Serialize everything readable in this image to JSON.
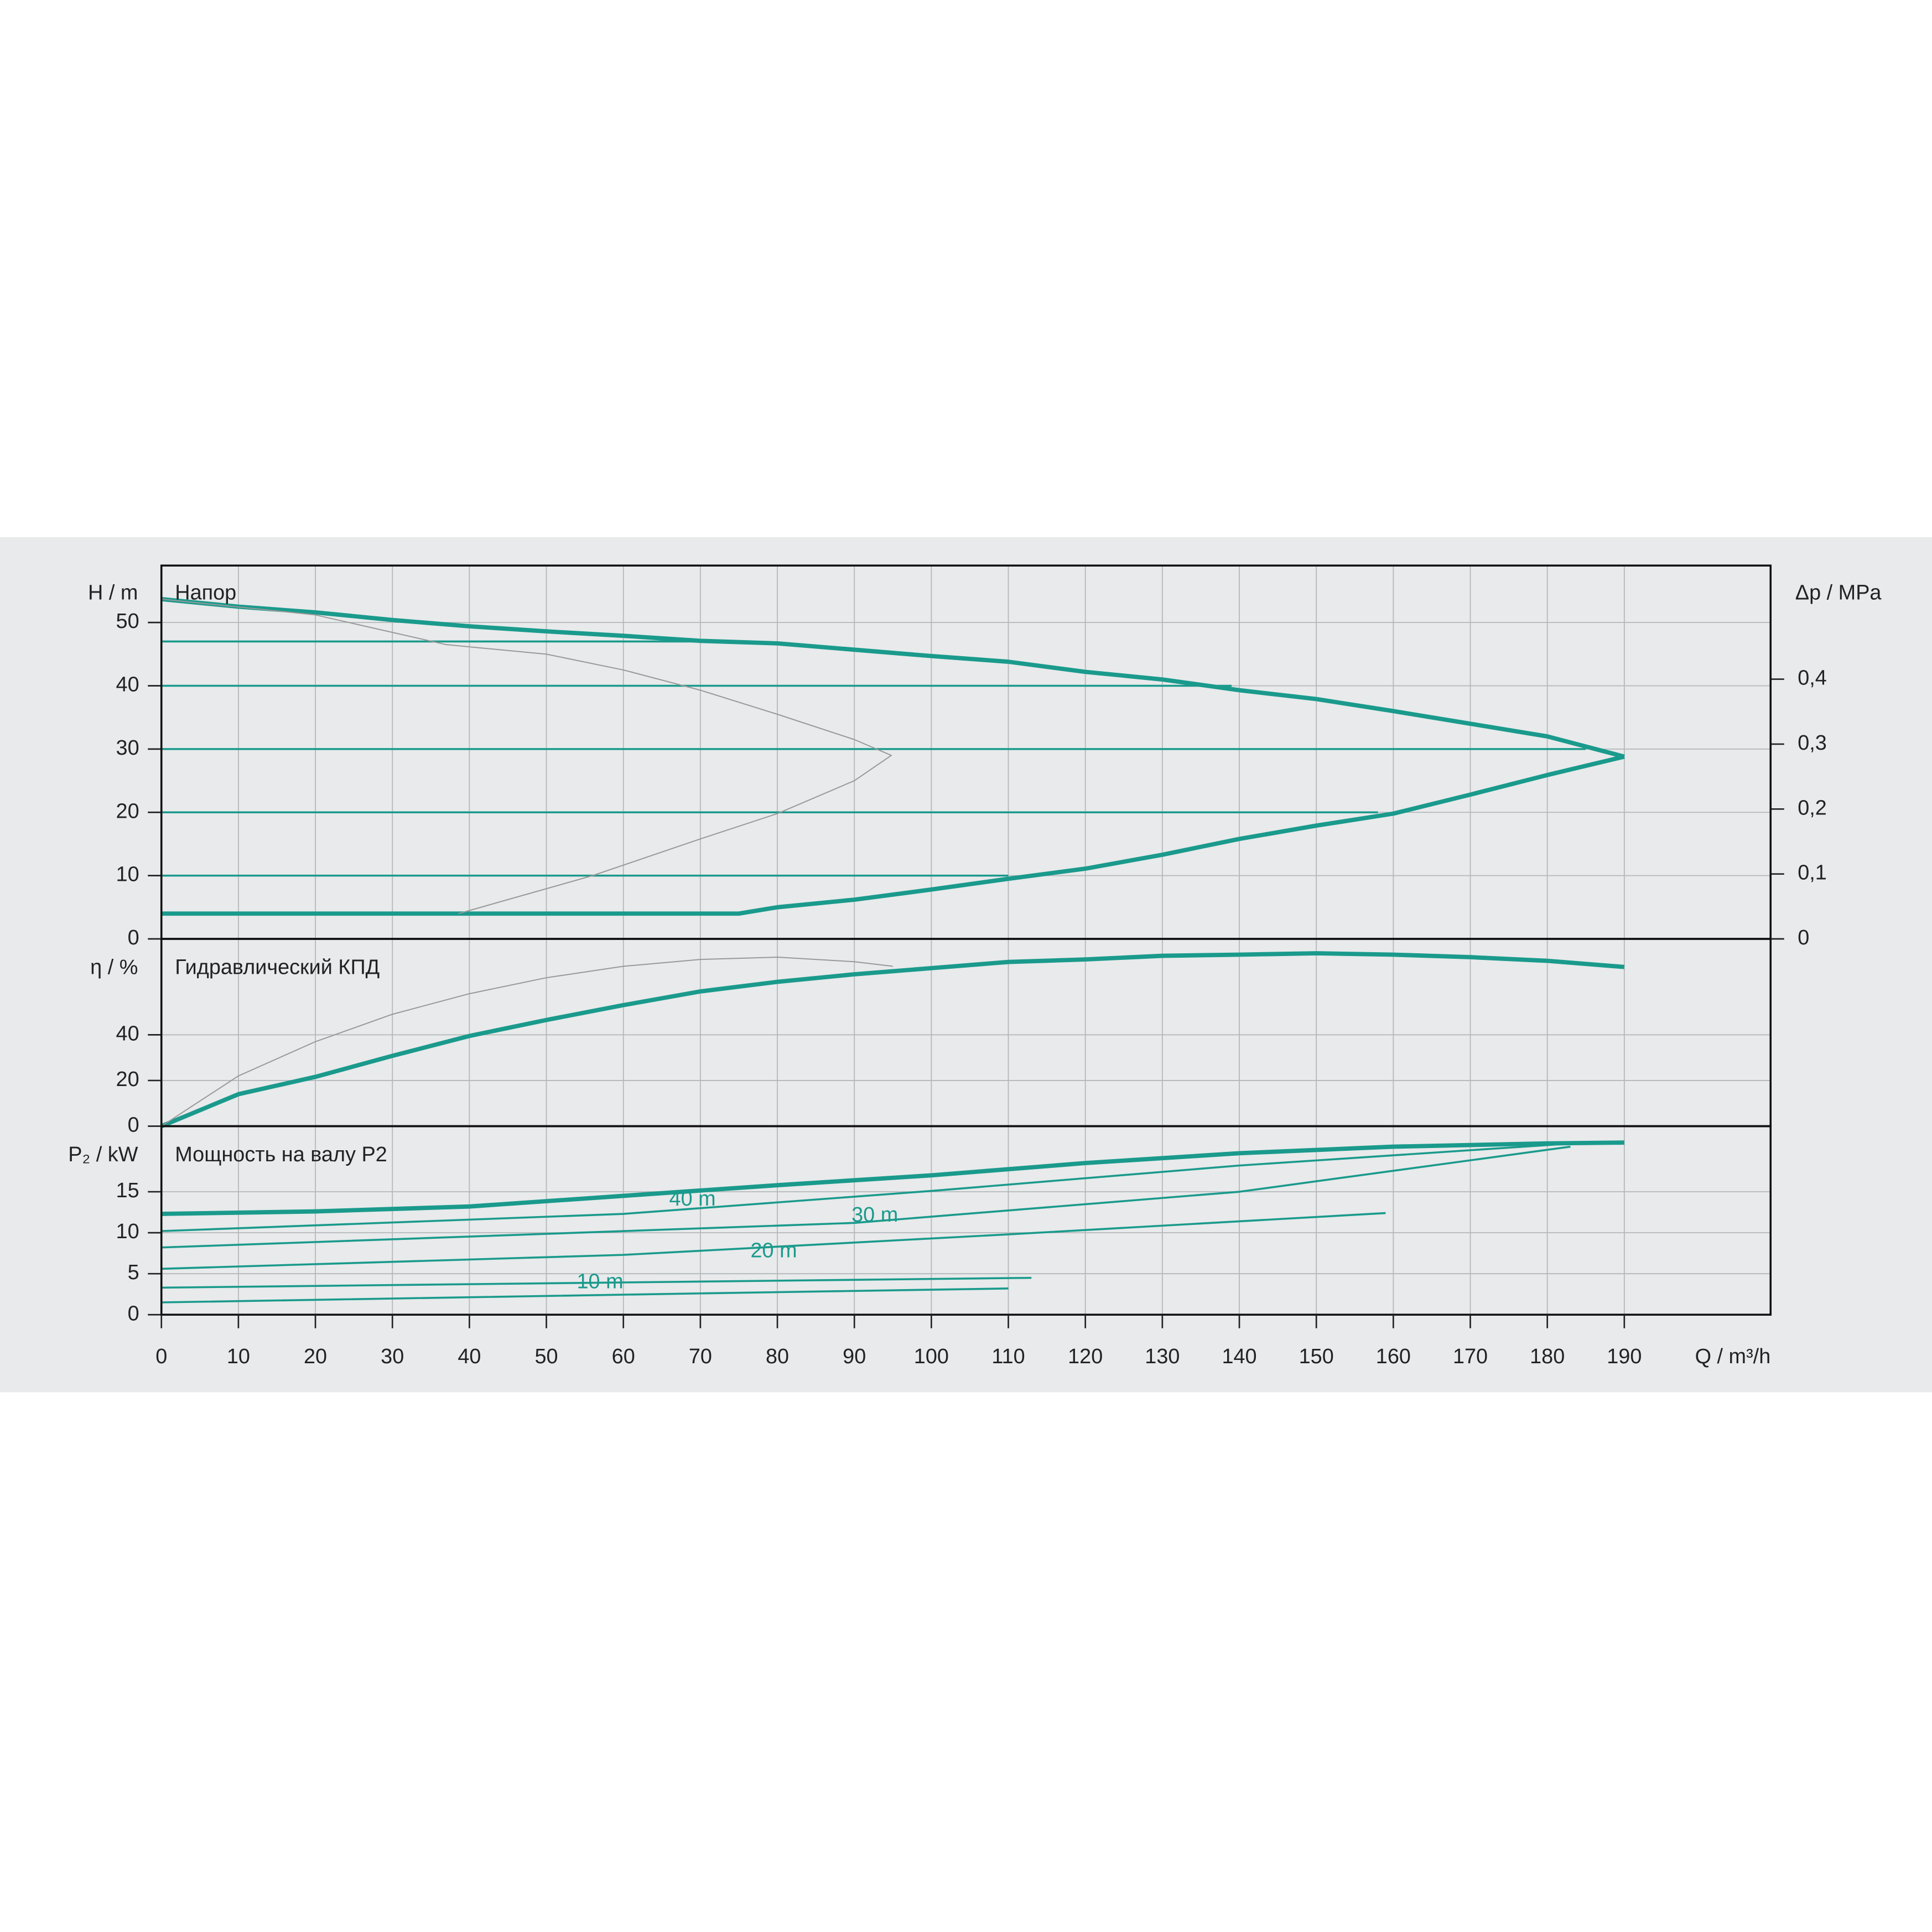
{
  "chart_data": [
    {
      "type": "line",
      "title": "Напор",
      "ylabel": "H / m",
      "y2label": "Δp / MPa",
      "xlim": [
        0,
        209
      ],
      "ylim": [
        0,
        59
      ],
      "yticks": [
        0,
        10,
        20,
        30,
        40,
        50
      ],
      "y2lim": [
        0,
        0.575
      ],
      "y2ticks": [
        0,
        {
          "value": 0.1,
          "label": "0,1"
        },
        {
          "value": 0.2,
          "label": "0,2"
        },
        {
          "value": 0.3,
          "label": "0,3"
        },
        {
          "value": 0.4,
          "label": "0,4"
        }
      ],
      "grid": true,
      "series": [
        {
          "color": "#1a9a8c",
          "linewidth": 3.5,
          "x": [
            0,
            10,
            20,
            30,
            40,
            50,
            60,
            70,
            80,
            90,
            100,
            110,
            120,
            130,
            140,
            150,
            160,
            170,
            180,
            190
          ],
          "values": [
            53.7,
            52.5,
            51.6,
            50.4,
            49.4,
            48.6,
            47.9,
            47.1,
            46.7,
            45.7,
            44.7,
            43.8,
            42.2,
            41,
            39.3,
            37.9,
            36,
            34,
            32,
            28.8
          ]
        },
        {
          "color": "#1a9a8c",
          "linewidth": 3.5,
          "x": [
            0,
            75,
            80,
            90,
            100,
            110,
            120,
            130,
            140,
            150,
            160,
            170,
            180,
            190
          ],
          "values": [
            4,
            4,
            5,
            6.2,
            7.8,
            9.5,
            11.1,
            13.3,
            15.8,
            17.9,
            19.8,
            22.8,
            25.9,
            28.8
          ]
        },
        {
          "color": "#1a9a8c",
          "linewidth": 1.6,
          "x": [
            0,
            70
          ],
          "values": [
            47,
            47
          ]
        },
        {
          "color": "#1a9a8c",
          "linewidth": 1.6,
          "x": [
            0,
            139
          ],
          "values": [
            40,
            40
          ]
        },
        {
          "color": "#1a9a8c",
          "linewidth": 1.6,
          "x": [
            0,
            185
          ],
          "values": [
            30,
            30
          ]
        },
        {
          "color": "#1a9a8c",
          "linewidth": 1.6,
          "x": [
            0,
            158
          ],
          "values": [
            20,
            20
          ]
        },
        {
          "color": "#1a9a8c",
          "linewidth": 1.6,
          "x": [
            0,
            110
          ],
          "values": [
            10,
            10
          ]
        },
        {
          "color": "#999999",
          "linewidth": 0.9,
          "x": [
            0,
            20,
            37,
            50,
            60,
            70,
            80,
            90,
            94.8,
            90,
            80,
            70,
            56,
            38.6
          ],
          "values": [
            53.7,
            51.2,
            46.5,
            45,
            42.5,
            39.3,
            35.5,
            31.5,
            29,
            25,
            19.8,
            15.8,
            10,
            4
          ]
        }
      ]
    },
    {
      "type": "line",
      "title": "Гидравлический КПД",
      "ylabel": "η / %",
      "xlim": [
        0,
        209
      ],
      "ylim": [
        0,
        82
      ],
      "yticks": [
        0,
        20,
        40
      ],
      "grid": true,
      "series": [
        {
          "color": "#1a9a8c",
          "linewidth": 3.5,
          "x": [
            0,
            10,
            20,
            30,
            40,
            50,
            60,
            70,
            80,
            90,
            100,
            110,
            120,
            130,
            140,
            150,
            160,
            170,
            180,
            190
          ],
          "values": [
            0,
            14,
            21.6,
            30.8,
            39.5,
            46.5,
            53,
            59,
            63.2,
            66.5,
            69.2,
            71.9,
            73,
            74.6,
            75.1,
            75.7,
            75.1,
            74,
            72.4,
            69.7
          ]
        },
        {
          "color": "#999999",
          "linewidth": 0.9,
          "x": [
            0,
            10,
            20,
            30,
            40,
            50,
            60,
            70,
            80,
            90,
            95
          ],
          "values": [
            0,
            22,
            37,
            49,
            58,
            65,
            70,
            73,
            74,
            72,
            70
          ]
        }
      ]
    },
    {
      "type": "line",
      "title": "Мощность на валу P2",
      "ylabel": "P₂ / kW",
      "xlabel": "Q / m³/h",
      "xlim": [
        0,
        209
      ],
      "ylim": [
        0,
        23
      ],
      "yticks": [
        0,
        5,
        10,
        15
      ],
      "grid": true,
      "xticks": [
        0,
        10,
        20,
        30,
        40,
        50,
        60,
        70,
        80,
        90,
        100,
        110,
        120,
        130,
        140,
        150,
        160,
        170,
        180,
        190
      ],
      "series": [
        {
          "color": "#1a9a8c",
          "linewidth": 3.5,
          "x": [
            0,
            20,
            40,
            60,
            80,
            100,
            120,
            140,
            160,
            180,
            190
          ],
          "values": [
            12.3,
            12.6,
            13.2,
            14.5,
            15.8,
            17,
            18.5,
            19.7,
            20.5,
            20.9,
            21
          ]
        },
        {
          "name": "40 m",
          "color": "#1a9a8c",
          "linewidth": 1.6,
          "x": [
            0,
            60,
            100,
            140,
            185
          ],
          "values": [
            10.2,
            12.3,
            15.1,
            18.2,
            21
          ]
        },
        {
          "name": "30 m",
          "color": "#1a9a8c",
          "linewidth": 1.6,
          "x": [
            0,
            90,
            140,
            183
          ],
          "values": [
            8.2,
            11.2,
            15,
            20.5
          ]
        },
        {
          "name": "20 m",
          "color": "#1a9a8c",
          "linewidth": 1.6,
          "x": [
            0,
            60,
            110,
            159
          ],
          "values": [
            5.6,
            7.3,
            9.8,
            12.4
          ]
        },
        {
          "name": "10 m",
          "color": "#1a9a8c",
          "linewidth": 1.6,
          "x": [
            0,
            113
          ],
          "values": [
            3.3,
            4.5
          ]
        },
        {
          "color": "#1a9a8c",
          "linewidth": 1.6,
          "x": [
            0,
            70,
            110
          ],
          "values": [
            1.5,
            2.6,
            3.2
          ]
        }
      ]
    }
  ]
}
